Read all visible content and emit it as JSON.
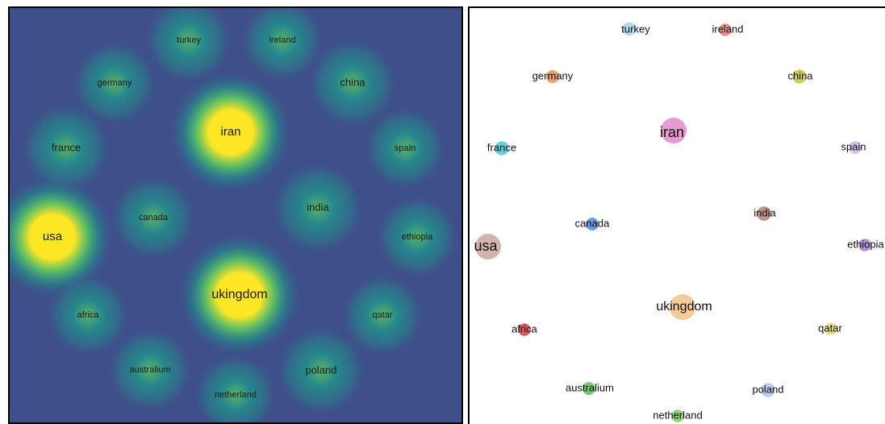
{
  "panels": {
    "density": {
      "colormap": [
        "#440154",
        "#3b528b",
        "#21918c",
        "#5ec962",
        "#fde725"
      ],
      "background": "#3f4f8a"
    },
    "scatter": {
      "background": "#ffffff"
    }
  },
  "nodes": [
    {
      "label": "turkey",
      "color": "#a9d3ea",
      "weight": 0.55
    },
    {
      "label": "ireland",
      "color": "#e47b77",
      "weight": 0.45
    },
    {
      "label": "germany",
      "color": "#e8925a",
      "weight": 0.5
    },
    {
      "label": "china",
      "color": "#c9c63a",
      "weight": 0.6
    },
    {
      "label": "iran",
      "color": "#e48acb",
      "weight": 1.0
    },
    {
      "label": "france",
      "color": "#4fc3dc",
      "weight": 0.6
    },
    {
      "label": "spain",
      "color": "#c9b6e6",
      "weight": 0.45
    },
    {
      "label": "canada",
      "color": "#4f8fd0",
      "weight": 0.5
    },
    {
      "label": "india",
      "color": "#b87f74",
      "weight": 0.65
    },
    {
      "label": "usa",
      "color": "#c9a89e",
      "weight": 1.0
    },
    {
      "label": "ethiopia",
      "color": "#9c82cc",
      "weight": 0.45
    },
    {
      "label": "ukingdom",
      "color": "#f2c28a",
      "weight": 1.0
    },
    {
      "label": "africa",
      "color": "#d8403e",
      "weight": 0.45
    },
    {
      "label": "qatar",
      "color": "#e0dc7a",
      "weight": 0.45
    },
    {
      "label": "australium",
      "color": "#5fbf5a",
      "weight": 0.5
    },
    {
      "label": "poland",
      "color": "#aac6ea",
      "weight": 0.6
    },
    {
      "label": "netherland",
      "color": "#7cc86b",
      "weight": 0.45
    }
  ]
}
